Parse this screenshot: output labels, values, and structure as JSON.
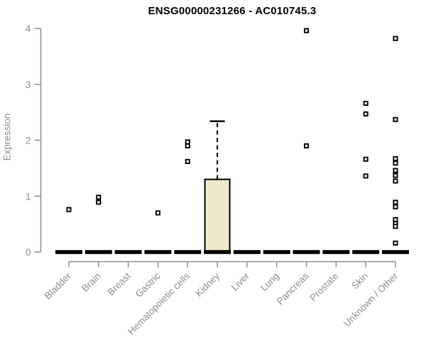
{
  "chart_data": {
    "type": "boxplot",
    "title": "ENSG00000231266 - AC010745.3",
    "ylabel": "Expression",
    "xlabel": "",
    "ylim": [
      0,
      4
    ],
    "yticks": [
      0,
      1,
      2,
      3,
      4
    ],
    "grid": false,
    "legend": "none",
    "categories": [
      "Bladder",
      "Brain",
      "Breast",
      "Gastric",
      "Hematopoietic cells",
      "Kidney",
      "Liver",
      "Lung",
      "Pancreas",
      "Prostate",
      "Skin",
      "Unknown / Other"
    ],
    "series": [
      {
        "category": "Bladder",
        "median": 0,
        "q1": 0,
        "q3": 0,
        "whisker_low": 0,
        "whisker_high": 0,
        "outliers": [
          0.76
        ]
      },
      {
        "category": "Brain",
        "median": 0,
        "q1": 0,
        "q3": 0,
        "whisker_low": 0,
        "whisker_high": 0,
        "outliers": [
          0.98,
          0.89
        ]
      },
      {
        "category": "Breast",
        "median": 0,
        "q1": 0,
        "q3": 0,
        "whisker_low": 0,
        "whisker_high": 0,
        "outliers": []
      },
      {
        "category": "Gastric",
        "median": 0,
        "q1": 0,
        "q3": 0,
        "whisker_low": 0,
        "whisker_high": 0,
        "outliers": [
          0.7
        ]
      },
      {
        "category": "Hematopoietic cells",
        "median": 0,
        "q1": 0,
        "q3": 0,
        "whisker_low": 0,
        "whisker_high": 0,
        "outliers": [
          1.97,
          1.9,
          1.62
        ]
      },
      {
        "category": "Kidney",
        "median": 0,
        "q1": 0,
        "q3": 1.3,
        "whisker_low": 0,
        "whisker_high": 2.34,
        "outliers": []
      },
      {
        "category": "Liver",
        "median": 0,
        "q1": 0,
        "q3": 0,
        "whisker_low": 0,
        "whisker_high": 0,
        "outliers": []
      },
      {
        "category": "Lung",
        "median": 0,
        "q1": 0,
        "q3": 0,
        "whisker_low": 0,
        "whisker_high": 0,
        "outliers": []
      },
      {
        "category": "Pancreas",
        "median": 0,
        "q1": 0,
        "q3": 0,
        "whisker_low": 0,
        "whisker_high": 0,
        "outliers": [
          3.96,
          1.9
        ]
      },
      {
        "category": "Prostate",
        "median": 0,
        "q1": 0,
        "q3": 0,
        "whisker_low": 0,
        "whisker_high": 0,
        "outliers": []
      },
      {
        "category": "Skin",
        "median": 0,
        "q1": 0,
        "q3": 0,
        "whisker_low": 0,
        "whisker_high": 0,
        "outliers": [
          2.66,
          2.47,
          1.66,
          1.36
        ]
      },
      {
        "category": "Unknown / Other",
        "median": 0,
        "q1": 0,
        "q3": 0,
        "whisker_low": 0,
        "whisker_high": 0,
        "outliers": [
          3.82,
          2.37,
          1.67,
          1.59,
          1.46,
          1.37,
          1.27,
          0.89,
          0.81,
          0.58,
          0.51,
          0.46,
          0.16
        ]
      }
    ],
    "colors": {
      "box_fill": "#EEE8CD",
      "box_stroke": "#000000",
      "median": "#000000",
      "point": "#000000",
      "axis": "#8E8E8E",
      "title": "#000000",
      "background": "#FFFFFF"
    }
  }
}
